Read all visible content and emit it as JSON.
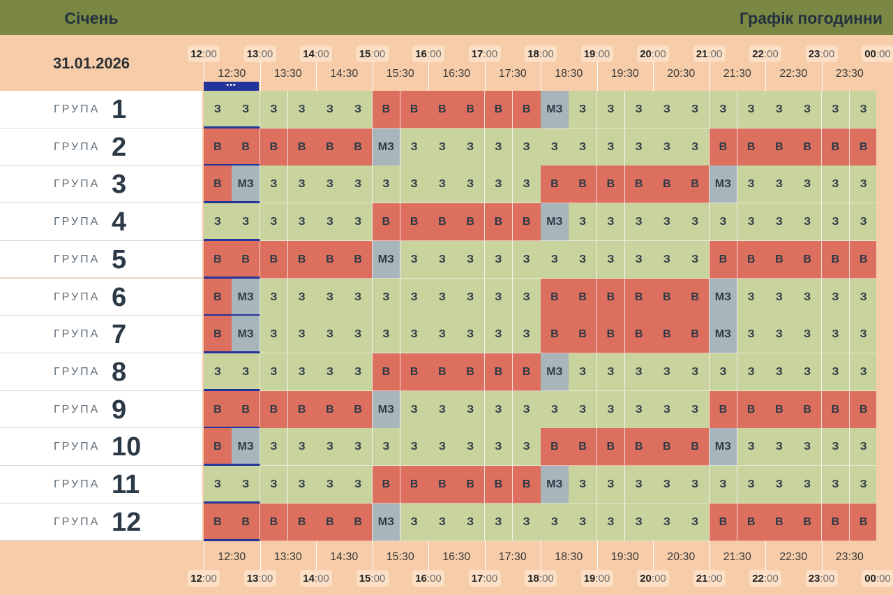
{
  "header": {
    "month": "Січень",
    "title": "Графік погодинни"
  },
  "date": "31.01.2026",
  "hours": [
    {
      "h": "12",
      "m": ":00"
    },
    {
      "h": "13",
      "m": ":00"
    },
    {
      "h": "14",
      "m": ":00"
    },
    {
      "h": "15",
      "m": ":00"
    },
    {
      "h": "16",
      "m": ":00"
    },
    {
      "h": "17",
      "m": ":00"
    },
    {
      "h": "18",
      "m": ":00"
    },
    {
      "h": "19",
      "m": ":00"
    },
    {
      "h": "20",
      "m": ":00"
    },
    {
      "h": "21",
      "m": ":00"
    },
    {
      "h": "22",
      "m": ":00"
    },
    {
      "h": "23",
      "m": ":00"
    },
    {
      "h": "00",
      "m": ":00"
    }
  ],
  "half_hours": [
    "12:30",
    "13:30",
    "14:30",
    "15:30",
    "16:30",
    "17:30",
    "18:30",
    "19:30",
    "20:30",
    "21:30",
    "22:30",
    "23:30"
  ],
  "current_indicator": "•••",
  "group_label": "ГРУПА",
  "colors": {
    "on": "#c9d39e",
    "off": "#dd6f5f",
    "maybe": "#a8b6bc",
    "current": "#23349a",
    "header": "#7a8843"
  },
  "groups": [
    {
      "number": "1",
      "cells": [
        "З",
        "З",
        "З",
        "З",
        "З",
        "З",
        "В",
        "В",
        "В",
        "В",
        "В",
        "В",
        "МЗ",
        "З",
        "З",
        "З",
        "З",
        "З",
        "З",
        "З",
        "З",
        "З",
        "З",
        "З"
      ]
    },
    {
      "number": "2",
      "cells": [
        "В",
        "В",
        "В",
        "В",
        "В",
        "В",
        "МЗ",
        "З",
        "З",
        "З",
        "З",
        "З",
        "З",
        "З",
        "З",
        "З",
        "З",
        "З",
        "В",
        "В",
        "В",
        "В",
        "В",
        "В"
      ]
    },
    {
      "number": "3",
      "cells": [
        "В",
        "МЗ",
        "З",
        "З",
        "З",
        "З",
        "З",
        "З",
        "З",
        "З",
        "З",
        "З",
        "В",
        "В",
        "В",
        "В",
        "В",
        "В",
        "МЗ",
        "З",
        "З",
        "З",
        "З",
        "З"
      ]
    },
    {
      "number": "4",
      "cells": [
        "З",
        "З",
        "З",
        "З",
        "З",
        "З",
        "В",
        "В",
        "В",
        "В",
        "В",
        "В",
        "МЗ",
        "З",
        "З",
        "З",
        "З",
        "З",
        "З",
        "З",
        "З",
        "З",
        "З",
        "З"
      ]
    },
    {
      "number": "5",
      "cells": [
        "В",
        "В",
        "В",
        "В",
        "В",
        "В",
        "МЗ",
        "З",
        "З",
        "З",
        "З",
        "З",
        "З",
        "З",
        "З",
        "З",
        "З",
        "З",
        "В",
        "В",
        "В",
        "В",
        "В",
        "В"
      ]
    },
    {
      "number": "6",
      "cells": [
        "В",
        "МЗ",
        "З",
        "З",
        "З",
        "З",
        "З",
        "З",
        "З",
        "З",
        "З",
        "З",
        "В",
        "В",
        "В",
        "В",
        "В",
        "В",
        "МЗ",
        "З",
        "З",
        "З",
        "З",
        "З"
      ]
    },
    {
      "number": "7",
      "cells": [
        "В",
        "МЗ",
        "З",
        "З",
        "З",
        "З",
        "З",
        "З",
        "З",
        "З",
        "З",
        "З",
        "В",
        "В",
        "В",
        "В",
        "В",
        "В",
        "МЗ",
        "З",
        "З",
        "З",
        "З",
        "З"
      ]
    },
    {
      "number": "8",
      "cells": [
        "З",
        "З",
        "З",
        "З",
        "З",
        "З",
        "В",
        "В",
        "В",
        "В",
        "В",
        "В",
        "МЗ",
        "З",
        "З",
        "З",
        "З",
        "З",
        "З",
        "З",
        "З",
        "З",
        "З",
        "З"
      ]
    },
    {
      "number": "9",
      "cells": [
        "В",
        "В",
        "В",
        "В",
        "В",
        "В",
        "МЗ",
        "З",
        "З",
        "З",
        "З",
        "З",
        "З",
        "З",
        "З",
        "З",
        "З",
        "З",
        "В",
        "В",
        "В",
        "В",
        "В",
        "В"
      ]
    },
    {
      "number": "10",
      "cells": [
        "В",
        "МЗ",
        "З",
        "З",
        "З",
        "З",
        "З",
        "З",
        "З",
        "З",
        "З",
        "З",
        "В",
        "В",
        "В",
        "В",
        "В",
        "В",
        "МЗ",
        "З",
        "З",
        "З",
        "З",
        "З"
      ]
    },
    {
      "number": "11",
      "cells": [
        "З",
        "З",
        "З",
        "З",
        "З",
        "З",
        "В",
        "В",
        "В",
        "В",
        "В",
        "В",
        "МЗ",
        "З",
        "З",
        "З",
        "З",
        "З",
        "З",
        "З",
        "З",
        "З",
        "З",
        "З"
      ]
    },
    {
      "number": "12",
      "cells": [
        "В",
        "В",
        "В",
        "В",
        "В",
        "В",
        "МЗ",
        "З",
        "З",
        "З",
        "З",
        "З",
        "З",
        "З",
        "З",
        "З",
        "З",
        "З",
        "В",
        "В",
        "В",
        "В",
        "В",
        "В"
      ]
    }
  ]
}
